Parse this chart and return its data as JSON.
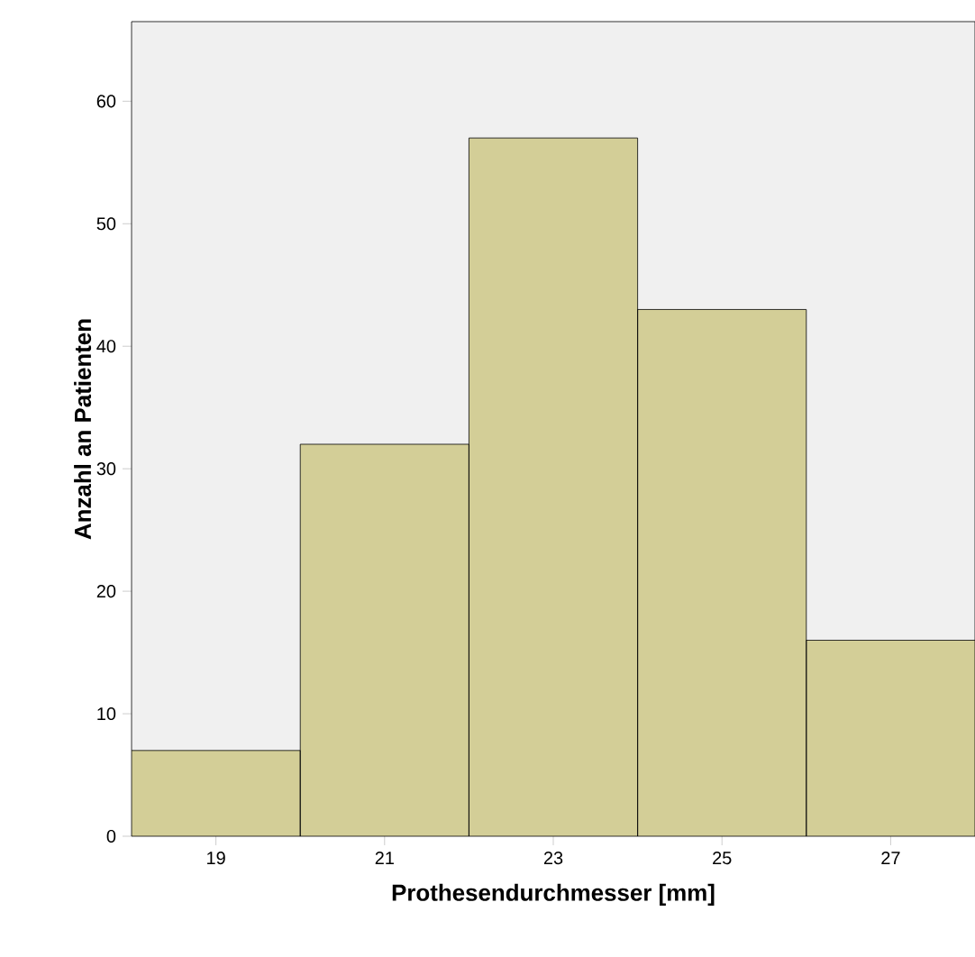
{
  "chart_data": {
    "type": "histogram",
    "xlabel": "Prothesendurchmesser [mm]",
    "ylabel": "Anzahl an Patienten",
    "bins": [
      18,
      20,
      22,
      24,
      26,
      28
    ],
    "values": [
      7,
      32,
      57,
      43,
      16
    ],
    "color": "#d3ce97",
    "xlim": [
      18,
      28
    ],
    "ylim": [
      0,
      66.5
    ],
    "xticks": [
      19,
      21,
      23,
      25,
      27
    ],
    "yticks": [
      0,
      10,
      20,
      30,
      40,
      50,
      60
    ]
  }
}
